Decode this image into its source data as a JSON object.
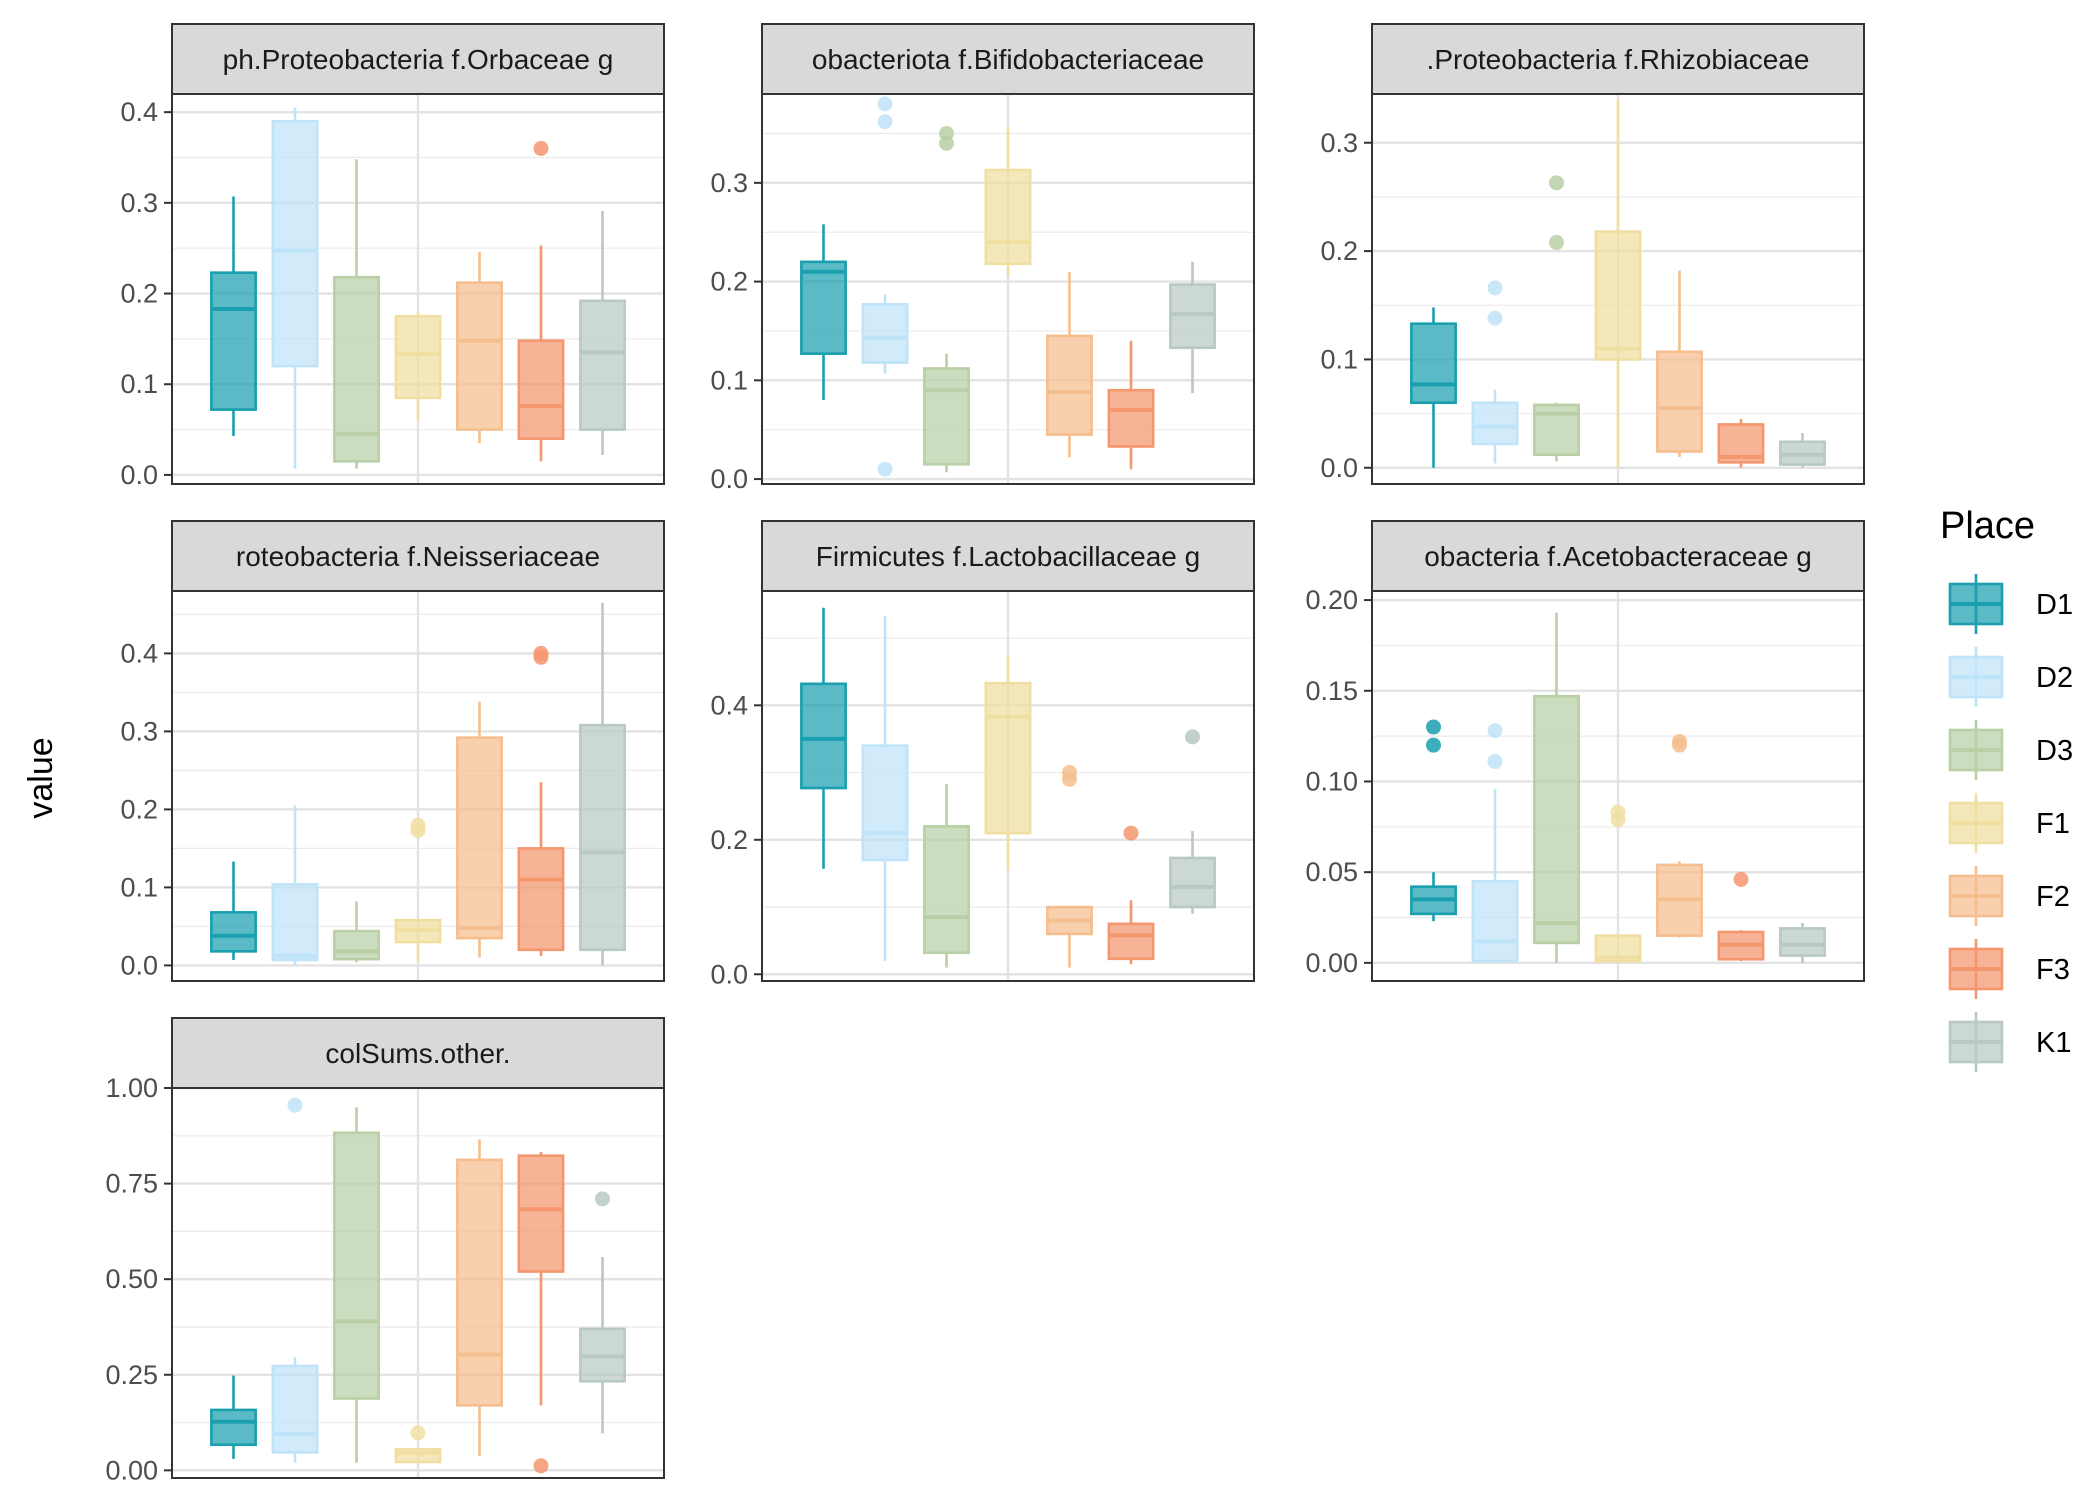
{
  "chart_data": {
    "type": "boxplot",
    "ylabel": "value",
    "xlabel": "",
    "legend": {
      "title": "Place",
      "position": "right",
      "entries": [
        {
          "name": "D1",
          "color": "#1a9fae"
        },
        {
          "name": "D2",
          "color": "#bfe3f8"
        },
        {
          "name": "D3",
          "color": "#b9cfa6"
        },
        {
          "name": "F1",
          "color": "#f0dfa1"
        },
        {
          "name": "F2",
          "color": "#f5be8e"
        },
        {
          "name": "F3",
          "color": "#f4966e"
        },
        {
          "name": "K1",
          "color": "#b8c9c2"
        }
      ]
    },
    "facets": [
      {
        "title": "ph.Proteobacteria f.Orbaceae g",
        "ylim": [
          -0.01,
          0.42
        ],
        "yticks": [
          "0.0",
          "0.1",
          "0.2",
          "0.3",
          "0.4"
        ],
        "ytick_values": [
          0,
          0.1,
          0.2,
          0.3,
          0.4
        ],
        "boxes": [
          {
            "group": "D1",
            "min": 0.043,
            "q1": 0.072,
            "median": 0.183,
            "q3": 0.223,
            "max": 0.307,
            "outliers": []
          },
          {
            "group": "D2",
            "min": 0.007,
            "q1": 0.12,
            "median": 0.247,
            "q3": 0.39,
            "max": 0.405,
            "outliers": []
          },
          {
            "group": "D3",
            "min": 0.007,
            "q1": 0.015,
            "median": 0.045,
            "q3": 0.218,
            "max": 0.348,
            "outliers": []
          },
          {
            "group": "F1",
            "min": 0.06,
            "q1": 0.085,
            "median": 0.133,
            "q3": 0.175,
            "max": 0.18,
            "outliers": []
          },
          {
            "group": "F2",
            "min": 0.035,
            "q1": 0.05,
            "median": 0.148,
            "q3": 0.212,
            "max": 0.246,
            "outliers": []
          },
          {
            "group": "F3",
            "min": 0.015,
            "q1": 0.04,
            "median": 0.076,
            "q3": 0.148,
            "max": 0.253,
            "outliers": [
              0.36
            ]
          },
          {
            "group": "K1",
            "min": 0.022,
            "q1": 0.05,
            "median": 0.135,
            "q3": 0.192,
            "max": 0.291,
            "outliers": []
          }
        ]
      },
      {
        "title": "obacteriota f.Bifidobacteriaceae",
        "ylim": [
          -0.005,
          0.39
        ],
        "yticks": [
          "0.0",
          "0.1",
          "0.2",
          "0.3"
        ],
        "ytick_values": [
          0,
          0.1,
          0.2,
          0.3
        ],
        "boxes": [
          {
            "group": "D1",
            "min": 0.08,
            "q1": 0.127,
            "median": 0.21,
            "q3": 0.22,
            "max": 0.258,
            "outliers": []
          },
          {
            "group": "D2",
            "min": 0.107,
            "q1": 0.118,
            "median": 0.143,
            "q3": 0.177,
            "max": 0.187,
            "outliers": [
              0.01,
              0.362,
              0.38
            ]
          },
          {
            "group": "D3",
            "min": 0.007,
            "q1": 0.015,
            "median": 0.09,
            "q3": 0.112,
            "max": 0.127,
            "outliers": [
              0.34,
              0.35
            ]
          },
          {
            "group": "F1",
            "min": 0.205,
            "q1": 0.218,
            "median": 0.24,
            "q3": 0.313,
            "max": 0.357,
            "outliers": []
          },
          {
            "group": "F2",
            "min": 0.022,
            "q1": 0.045,
            "median": 0.088,
            "q3": 0.145,
            "max": 0.21,
            "outliers": []
          },
          {
            "group": "F3",
            "min": 0.01,
            "q1": 0.033,
            "median": 0.07,
            "q3": 0.09,
            "max": 0.14,
            "outliers": []
          },
          {
            "group": "K1",
            "min": 0.087,
            "q1": 0.133,
            "median": 0.167,
            "q3": 0.197,
            "max": 0.22,
            "outliers": []
          }
        ]
      },
      {
        "title": ".Proteobacteria f.Rhizobiaceae",
        "ylim": [
          -0.015,
          0.345
        ],
        "yticks": [
          "0.0",
          "0.1",
          "0.2",
          "0.3"
        ],
        "ytick_values": [
          0,
          0.1,
          0.2,
          0.3
        ],
        "boxes": [
          {
            "group": "D1",
            "min": 0.0,
            "q1": 0.06,
            "median": 0.077,
            "q3": 0.133,
            "max": 0.148,
            "outliers": []
          },
          {
            "group": "D2",
            "min": 0.004,
            "q1": 0.022,
            "median": 0.038,
            "q3": 0.06,
            "max": 0.072,
            "outliers": [
              0.138,
              0.166
            ]
          },
          {
            "group": "D3",
            "min": 0.006,
            "q1": 0.012,
            "median": 0.05,
            "q3": 0.058,
            "max": 0.06,
            "outliers": [
              0.208,
              0.263
            ]
          },
          {
            "group": "F1",
            "min": 0.0,
            "q1": 0.1,
            "median": 0.11,
            "q3": 0.218,
            "max": 0.34,
            "outliers": []
          },
          {
            "group": "F2",
            "min": 0.01,
            "q1": 0.015,
            "median": 0.055,
            "q3": 0.107,
            "max": 0.182,
            "outliers": []
          },
          {
            "group": "F3",
            "min": 0.0,
            "q1": 0.005,
            "median": 0.01,
            "q3": 0.04,
            "max": 0.045,
            "outliers": []
          },
          {
            "group": "K1",
            "min": 0.0,
            "q1": 0.003,
            "median": 0.012,
            "q3": 0.024,
            "max": 0.032,
            "outliers": []
          }
        ]
      },
      {
        "title": "roteobacteria f.Neisseriaceae",
        "ylim": [
          -0.02,
          0.48
        ],
        "yticks": [
          "0.0",
          "0.1",
          "0.2",
          "0.3",
          "0.4"
        ],
        "ytick_values": [
          0,
          0.1,
          0.2,
          0.3,
          0.4
        ],
        "boxes": [
          {
            "group": "D1",
            "min": 0.007,
            "q1": 0.018,
            "median": 0.038,
            "q3": 0.068,
            "max": 0.133,
            "outliers": []
          },
          {
            "group": "D2",
            "min": 0.0,
            "q1": 0.007,
            "median": 0.012,
            "q3": 0.104,
            "max": 0.205,
            "outliers": []
          },
          {
            "group": "D3",
            "min": 0.004,
            "q1": 0.008,
            "median": 0.018,
            "q3": 0.044,
            "max": 0.082,
            "outliers": []
          },
          {
            "group": "F1",
            "min": 0.005,
            "q1": 0.03,
            "median": 0.045,
            "q3": 0.058,
            "max": 0.06,
            "outliers": [
              0.173,
              0.18
            ]
          },
          {
            "group": "F2",
            "min": 0.01,
            "q1": 0.035,
            "median": 0.048,
            "q3": 0.292,
            "max": 0.338,
            "outliers": []
          },
          {
            "group": "F3",
            "min": 0.012,
            "q1": 0.02,
            "median": 0.11,
            "q3": 0.15,
            "max": 0.235,
            "outliers": [
              0.395,
              0.4
            ]
          },
          {
            "group": "K1",
            "min": 0.0,
            "q1": 0.02,
            "median": 0.145,
            "q3": 0.308,
            "max": 0.465,
            "outliers": []
          }
        ]
      },
      {
        "title": "Firmicutes f.Lactobacillaceae g",
        "ylim": [
          -0.01,
          0.57
        ],
        "yticks": [
          "0.0",
          "0.2",
          "0.4"
        ],
        "ytick_values": [
          0,
          0.2,
          0.4
        ],
        "boxes": [
          {
            "group": "D1",
            "min": 0.157,
            "q1": 0.277,
            "median": 0.35,
            "q3": 0.432,
            "max": 0.545,
            "outliers": []
          },
          {
            "group": "D2",
            "min": 0.02,
            "q1": 0.17,
            "median": 0.21,
            "q3": 0.34,
            "max": 0.533,
            "outliers": []
          },
          {
            "group": "D3",
            "min": 0.01,
            "q1": 0.032,
            "median": 0.085,
            "q3": 0.22,
            "max": 0.283,
            "outliers": []
          },
          {
            "group": "F1",
            "min": 0.155,
            "q1": 0.21,
            "median": 0.383,
            "q3": 0.433,
            "max": 0.473,
            "outliers": []
          },
          {
            "group": "F2",
            "min": 0.01,
            "q1": 0.06,
            "median": 0.08,
            "q3": 0.1,
            "max": 0.1,
            "outliers": [
              0.29,
              0.3
            ]
          },
          {
            "group": "F3",
            "min": 0.015,
            "q1": 0.023,
            "median": 0.058,
            "q3": 0.075,
            "max": 0.11,
            "outliers": [
              0.21
            ]
          },
          {
            "group": "K1",
            "min": 0.09,
            "q1": 0.1,
            "median": 0.13,
            "q3": 0.173,
            "max": 0.213,
            "outliers": [
              0.353
            ]
          }
        ]
      },
      {
        "title": "obacteria f.Acetobacteraceae g",
        "ylim": [
          -0.01,
          0.205
        ],
        "yticks": [
          "0.00",
          "0.05",
          "0.10",
          "0.15",
          "0.20"
        ],
        "ytick_values": [
          0,
          0.05,
          0.1,
          0.15,
          0.2
        ],
        "boxes": [
          {
            "group": "D1",
            "min": 0.023,
            "q1": 0.027,
            "median": 0.035,
            "q3": 0.042,
            "max": 0.05,
            "outliers": [
              0.12,
              0.13
            ]
          },
          {
            "group": "D2",
            "min": 0.0,
            "q1": 0.001,
            "median": 0.012,
            "q3": 0.045,
            "max": 0.096,
            "outliers": [
              0.111,
              0.128
            ]
          },
          {
            "group": "D3",
            "min": 0.0,
            "q1": 0.011,
            "median": 0.022,
            "q3": 0.147,
            "max": 0.193,
            "outliers": []
          },
          {
            "group": "F1",
            "min": 0.0,
            "q1": 0.001,
            "median": 0.003,
            "q3": 0.015,
            "max": 0.016,
            "outliers": [
              0.079,
              0.083
            ]
          },
          {
            "group": "F2",
            "min": 0.014,
            "q1": 0.015,
            "median": 0.035,
            "q3": 0.054,
            "max": 0.056,
            "outliers": [
              0.12,
              0.122
            ]
          },
          {
            "group": "F3",
            "min": 0.001,
            "q1": 0.002,
            "median": 0.01,
            "q3": 0.017,
            "max": 0.018,
            "outliers": [
              0.046
            ]
          },
          {
            "group": "K1",
            "min": 0.0,
            "q1": 0.004,
            "median": 0.01,
            "q3": 0.019,
            "max": 0.022,
            "outliers": []
          }
        ]
      },
      {
        "title": "colSums.other.",
        "ylim": [
          -0.02,
          1.0
        ],
        "yticks": [
          "0.00",
          "0.25",
          "0.50",
          "0.75",
          "1.00"
        ],
        "ytick_values": [
          0,
          0.25,
          0.5,
          0.75,
          1.0
        ],
        "boxes": [
          {
            "group": "D1",
            "min": 0.03,
            "q1": 0.067,
            "median": 0.127,
            "q3": 0.158,
            "max": 0.248,
            "outliers": []
          },
          {
            "group": "D2",
            "min": 0.02,
            "q1": 0.047,
            "median": 0.095,
            "q3": 0.273,
            "max": 0.296,
            "outliers": [
              0.955
            ]
          },
          {
            "group": "D3",
            "min": 0.02,
            "q1": 0.188,
            "median": 0.39,
            "q3": 0.883,
            "max": 0.95,
            "outliers": []
          },
          {
            "group": "F1",
            "min": 0.018,
            "q1": 0.022,
            "median": 0.045,
            "q3": 0.055,
            "max": 0.06,
            "outliers": [
              0.098
            ]
          },
          {
            "group": "F2",
            "min": 0.037,
            "q1": 0.17,
            "median": 0.303,
            "q3": 0.812,
            "max": 0.865,
            "outliers": []
          },
          {
            "group": "F3",
            "min": 0.17,
            "q1": 0.52,
            "median": 0.683,
            "q3": 0.823,
            "max": 0.833,
            "outliers": [
              0.012
            ]
          },
          {
            "group": "K1",
            "min": 0.097,
            "q1": 0.233,
            "median": 0.298,
            "q3": 0.37,
            "max": 0.558,
            "outliers": [
              0.71
            ]
          }
        ]
      }
    ]
  }
}
